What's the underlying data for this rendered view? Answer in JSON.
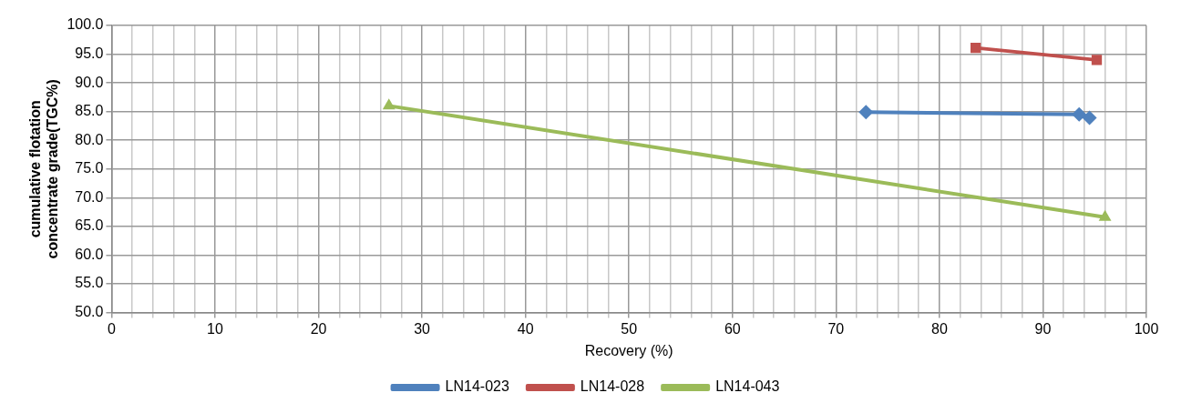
{
  "chart_data": {
    "type": "line",
    "xlabel": "Recovery (%)",
    "ylabel": "cumulative flotation\nconcentrate grade(TGC%)",
    "xlim": [
      0,
      100
    ],
    "xticks": [
      0,
      {
        "value": 2,
        "label": null
      },
      {
        "value": 4,
        "label": null
      },
      {
        "value": 6,
        "label": null
      },
      {
        "value": 8,
        "label": null
      },
      10,
      {
        "value": 12,
        "label": null
      },
      {
        "value": 14,
        "label": null
      },
      {
        "value": 16,
        "label": null
      },
      {
        "value": 18,
        "label": null
      },
      20,
      {
        "value": 22,
        "label": null
      },
      {
        "value": 24,
        "label": null
      },
      {
        "value": 26,
        "label": null
      },
      {
        "value": 28,
        "label": null
      },
      30,
      {
        "value": 32,
        "label": null
      },
      {
        "value": 34,
        "label": null
      },
      {
        "value": 36,
        "label": null
      },
      {
        "value": 38,
        "label": null
      },
      40,
      {
        "value": 42,
        "label": null
      },
      {
        "value": 44,
        "label": null
      },
      {
        "value": 46,
        "label": null
      },
      {
        "value": 48,
        "label": null
      },
      50,
      {
        "value": 52,
        "label": null
      },
      {
        "value": 54,
        "label": null
      },
      {
        "value": 56,
        "label": null
      },
      {
        "value": 58,
        "label": null
      },
      60,
      {
        "value": 62,
        "label": null
      },
      {
        "value": 64,
        "label": null
      },
      {
        "value": 66,
        "label": null
      },
      {
        "value": 68,
        "label": null
      },
      70,
      {
        "value": 72,
        "label": null
      },
      {
        "value": 74,
        "label": null
      },
      {
        "value": 76,
        "label": null
      },
      {
        "value": 78,
        "label": null
      },
      80,
      {
        "value": 82,
        "label": null
      },
      {
        "value": 84,
        "label": null
      },
      {
        "value": 86,
        "label": null
      },
      {
        "value": 88,
        "label": null
      },
      90,
      {
        "value": 92,
        "label": null
      },
      {
        "value": 94,
        "label": null
      },
      {
        "value": 96,
        "label": null
      },
      {
        "value": 98,
        "label": null
      },
      100
    ],
    "ylim": [
      50,
      100
    ],
    "yticks": [
      {
        "value": 50,
        "label": "50.0"
      },
      {
        "value": 55,
        "label": "55.0"
      },
      {
        "value": 60,
        "label": "60.0"
      },
      {
        "value": 65,
        "label": "65.0"
      },
      {
        "value": 70,
        "label": "70.0"
      },
      {
        "value": 75,
        "label": "75.0"
      },
      {
        "value": 80,
        "label": "80.0"
      },
      {
        "value": 85,
        "label": "85.0"
      },
      {
        "value": 90,
        "label": "90.0"
      },
      {
        "value": 95,
        "label": "95.0"
      },
      {
        "value": 100,
        "label": "100.0"
      }
    ],
    "grid": true,
    "legend": "bottom",
    "line_style": "solid",
    "series": [
      {
        "name": "LN14-023",
        "color": "#4f81bd",
        "marker": "diamond",
        "x": [
          72.9,
          93.5,
          94.5
        ],
        "values": [
          84.9,
          84.5,
          83.9
        ]
      },
      {
        "name": "LN14-028",
        "color": "#c0504d",
        "marker": "square",
        "x": [
          83.5,
          95.2
        ],
        "values": [
          96.1,
          94.0
        ]
      },
      {
        "name": "LN14-043",
        "color": "#9bbb59",
        "marker": "triangle",
        "x": [
          26.8,
          96.0
        ],
        "values": [
          86.0,
          66.6
        ]
      }
    ]
  }
}
